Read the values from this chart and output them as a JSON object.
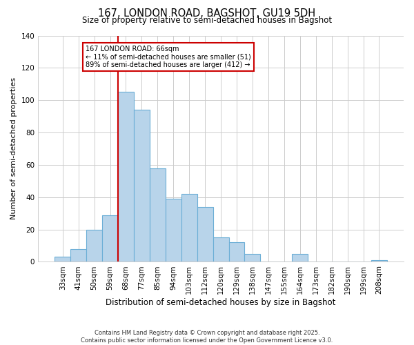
{
  "title": "167, LONDON ROAD, BAGSHOT, GU19 5DH",
  "subtitle": "Size of property relative to semi-detached houses in Bagshot",
  "xlabel": "Distribution of semi-detached houses by size in Bagshot",
  "ylabel": "Number of semi-detached properties",
  "categories": [
    "33sqm",
    "41sqm",
    "50sqm",
    "59sqm",
    "68sqm",
    "77sqm",
    "85sqm",
    "94sqm",
    "103sqm",
    "112sqm",
    "120sqm",
    "129sqm",
    "138sqm",
    "147sqm",
    "155sqm",
    "164sqm",
    "173sqm",
    "182sqm",
    "190sqm",
    "199sqm",
    "208sqm"
  ],
  "values": [
    3,
    8,
    20,
    29,
    105,
    94,
    58,
    39,
    42,
    34,
    15,
    12,
    5,
    0,
    0,
    5,
    0,
    0,
    0,
    0,
    1
  ],
  "bar_color": "#b8d4ea",
  "bar_edgecolor": "#6baed6",
  "marker_index": 4,
  "marker_label": "167 LONDON ROAD: 66sqm",
  "pct_smaller": 11,
  "pct_larger": 89,
  "count_smaller": 51,
  "count_larger": 412,
  "marker_line_color": "#cc0000",
  "annotation_box_edgecolor": "#cc0000",
  "ylim": [
    0,
    140
  ],
  "yticks": [
    0,
    20,
    40,
    60,
    80,
    100,
    120,
    140
  ],
  "footer_line1": "Contains HM Land Registry data © Crown copyright and database right 2025.",
  "footer_line2": "Contains public sector information licensed under the Open Government Licence v3.0.",
  "background_color": "#ffffff",
  "grid_color": "#cccccc"
}
